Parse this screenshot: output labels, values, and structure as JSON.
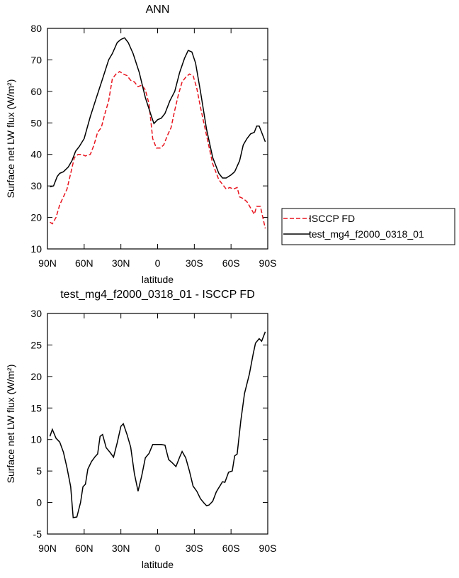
{
  "chart_data": [
    {
      "type": "line",
      "title": "ANN",
      "xlabel": "latitude",
      "ylabel": "Surface net LW flux (W/m²)",
      "xlim": [
        90,
        -90
      ],
      "xticks": [
        {
          "value": 90,
          "label": "90N"
        },
        {
          "value": 60,
          "label": "60N"
        },
        {
          "value": 30,
          "label": "30N"
        },
        0,
        {
          "value": -30,
          "label": "30S"
        },
        {
          "value": -60,
          "label": "60S"
        },
        {
          "value": -90,
          "label": "90S"
        }
      ],
      "ylim": [
        10,
        80
      ],
      "yticks": [
        10,
        20,
        30,
        40,
        50,
        60,
        70,
        80
      ],
      "legend": "outside-right",
      "series": [
        {
          "name": "ISCCP FD",
          "color": "#e8141e",
          "dash": "dashed",
          "x": [
            88,
            86,
            83,
            80,
            77,
            74,
            71,
            68,
            65,
            62,
            59,
            55,
            52,
            49,
            46,
            43,
            40,
            37,
            34,
            31,
            28,
            25,
            22,
            19,
            16,
            13,
            10,
            7,
            4,
            1,
            -2,
            -5,
            -8,
            -11,
            -14,
            -17,
            -20,
            -23,
            -26,
            -29,
            -32,
            -35,
            -40,
            -45,
            -50,
            -53,
            -56,
            -59,
            -62,
            -65,
            -67,
            -70,
            -73,
            -76,
            -79,
            -81,
            -84,
            -88
          ],
          "values": [
            18.5,
            18,
            20,
            24,
            26.5,
            29,
            34,
            39,
            40,
            40,
            39.5,
            40,
            43,
            47,
            48.5,
            53,
            57,
            64,
            65.5,
            66.3,
            65.5,
            65,
            63.5,
            63,
            61.5,
            62,
            60.5,
            56,
            45,
            42,
            42,
            43,
            46,
            48.5,
            54,
            59,
            63,
            64.5,
            65.5,
            65,
            61,
            55,
            46,
            37,
            32,
            30.5,
            29,
            29.5,
            29,
            29.5,
            26.5,
            26,
            25,
            23,
            21,
            23.5,
            23.5,
            16.5
          ]
        },
        {
          "name": "test_mg4_f2000_0318_01",
          "color": "#000000",
          "dash": "solid",
          "x": [
            88,
            85,
            82,
            80,
            77,
            73,
            70,
            67,
            64,
            60,
            55,
            50,
            45,
            40,
            37,
            33,
            30,
            27,
            24,
            20,
            15,
            10,
            5,
            3,
            0,
            -3,
            -6,
            -10,
            -14,
            -18,
            -22,
            -25,
            -28,
            -31,
            -35,
            -40,
            -45,
            -50,
            -53,
            -56,
            -60,
            -63,
            -67,
            -70,
            -73,
            -76,
            -79,
            -81,
            -83,
            -85,
            -88
          ],
          "values": [
            29.7,
            30,
            33,
            34,
            34.5,
            36,
            38,
            41,
            42.5,
            45,
            52,
            58,
            64,
            70,
            72,
            75.5,
            76.5,
            77,
            75.5,
            72,
            66,
            58,
            52,
            49.8,
            51,
            51.5,
            53,
            57,
            60,
            66,
            70.5,
            73,
            72.5,
            69,
            60,
            48,
            39,
            34,
            32.5,
            32.5,
            33.5,
            34.5,
            38,
            43,
            45,
            46.5,
            47,
            49,
            49,
            47,
            44
          ]
        }
      ]
    },
    {
      "type": "line",
      "title": "test_mg4_f2000_0318_01 - ISCCP FD",
      "xlabel": "latitude",
      "ylabel": "Surface net LW flux (W/m²)",
      "xlim": [
        90,
        -90
      ],
      "xticks": [
        {
          "value": 90,
          "label": "90N"
        },
        {
          "value": 60,
          "label": "60N"
        },
        {
          "value": 30,
          "label": "30N"
        },
        0,
        {
          "value": -30,
          "label": "30S"
        },
        {
          "value": -60,
          "label": "60S"
        },
        {
          "value": -90,
          "label": "90S"
        }
      ],
      "ylim": [
        -5,
        30
      ],
      "yticks": [
        -5,
        0,
        5,
        10,
        15,
        20,
        25,
        30
      ],
      "series": [
        {
          "color": "#000000",
          "dash": "solid",
          "x": [
            88,
            86,
            83,
            80,
            77,
            74,
            71,
            69,
            66,
            63,
            61,
            59,
            57,
            54,
            51,
            49,
            47,
            45,
            42,
            39,
            36,
            33,
            30,
            28,
            25,
            22,
            19,
            16,
            13,
            10,
            7,
            4,
            1,
            -3,
            -6,
            -9,
            -12,
            -15,
            -18,
            -20,
            -23,
            -26,
            -29,
            -32,
            -35,
            -38,
            -40,
            -42,
            -45,
            -48,
            -53,
            -55,
            -58,
            -61,
            -63,
            -65,
            -68,
            -71,
            -75,
            -78,
            -80,
            -83,
            -85,
            -88
          ],
          "values": [
            10.5,
            11.6,
            10.2,
            9.6,
            8,
            5.5,
            2.5,
            -2.4,
            -2.3,
            0,
            2.5,
            2.9,
            5.3,
            6.5,
            7.3,
            7.7,
            10.5,
            10.8,
            8.7,
            8,
            7.2,
            9.5,
            12.1,
            12.5,
            10.8,
            8.8,
            4.6,
            1.8,
            4.2,
            7.1,
            7.8,
            9.2,
            9.2,
            9.2,
            9.1,
            6.8,
            6.3,
            5.7,
            7.2,
            8.1,
            7.1,
            5,
            2.6,
            1.8,
            0.6,
            -0.1,
            -0.5,
            -0.4,
            0.2,
            1.7,
            3.3,
            3.2,
            4.8,
            5,
            7.4,
            7.7,
            13,
            17.3,
            20.4,
            23.5,
            25.3,
            26,
            25.6,
            27.1
          ]
        }
      ]
    }
  ]
}
